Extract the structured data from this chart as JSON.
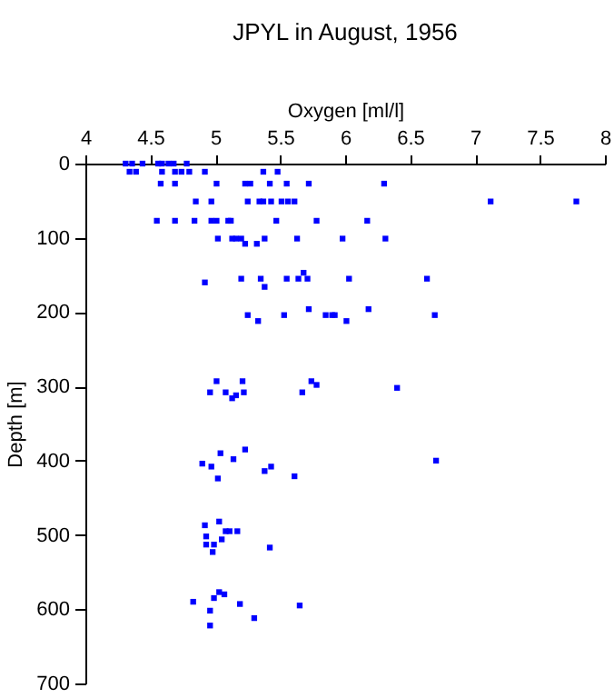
{
  "chart_data": {
    "type": "scatter",
    "title": "JPYL in August, 1956",
    "xlabel": "Oxygen [ml/l]",
    "ylabel": "Depth [m]",
    "xlim": [
      4,
      8
    ],
    "xticks": [
      4,
      4.5,
      5,
      5.5,
      6,
      6.5,
      7,
      7.5,
      8
    ],
    "ylim": [
      700,
      0
    ],
    "yticks": [
      0,
      100,
      200,
      300,
      400,
      500,
      600,
      700
    ],
    "grid": false,
    "marker": "square",
    "series": [
      {
        "color": "#0000ff",
        "x": [
          4.31,
          4.36,
          4.44,
          4.56,
          4.59,
          4.64,
          4.68,
          4.78,
          4.34,
          4.39,
          4.59,
          4.69,
          4.74,
          4.8,
          4.92,
          5.37,
          5.48,
          4.58,
          4.69,
          5.01,
          5.23,
          5.27,
          5.42,
          5.55,
          5.72,
          6.3,
          4.85,
          4.97,
          5.25,
          5.34,
          5.37,
          5.43,
          5.51,
          5.56,
          5.61,
          7.12,
          7.78,
          4.55,
          4.69,
          4.84,
          4.97,
          5.01,
          5.1,
          5.12,
          5.47,
          5.78,
          6.17,
          5.02,
          5.13,
          5.16,
          5.2,
          5.38,
          5.63,
          5.98,
          6.31,
          5.23,
          5.32,
          5.68,
          4.92,
          5.2,
          5.35,
          5.55,
          5.64,
          5.71,
          6.03,
          6.63,
          5.38,
          5.72,
          6.18,
          5.25,
          5.53,
          5.85,
          5.9,
          5.92,
          6.69,
          5.33,
          6.01,
          5.01,
          5.21,
          5.74,
          5.78,
          6.4,
          4.96,
          5.08,
          5.22,
          5.67,
          5.16,
          5.13,
          5.23,
          5.04,
          5.14,
          6.7,
          4.9,
          4.97,
          5.43,
          5.38,
          5.61,
          5.02,
          5.03,
          4.92,
          5.08,
          5.11,
          5.17,
          4.93,
          5.05,
          4.93,
          4.99,
          5.42,
          4.98,
          5.03,
          5.07,
          4.99,
          4.83,
          5.19,
          5.65,
          4.96,
          5.3,
          4.96
        ],
        "values": [
          0,
          0,
          0,
          0,
          0,
          0,
          0,
          0,
          11,
          11,
          11,
          11,
          11,
          11,
          11,
          11,
          11,
          27,
          27,
          27,
          27,
          27,
          27,
          27,
          27,
          27,
          51,
          51,
          51,
          51,
          51,
          51,
          51,
          51,
          51,
          51,
          51,
          77,
          77,
          77,
          77,
          77,
          77,
          77,
          77,
          77,
          77,
          101,
          101,
          101,
          101,
          101,
          101,
          101,
          101,
          108,
          108,
          147,
          160,
          155,
          155,
          155,
          155,
          155,
          155,
          155,
          166,
          196,
          196,
          204,
          204,
          204,
          204,
          204,
          204,
          212,
          212,
          293,
          293,
          293,
          298,
          302,
          308,
          308,
          308,
          308,
          312,
          316,
          385,
          390,
          398,
          400,
          404,
          408,
          408,
          414,
          421,
          424,
          482,
          487,
          495,
          495,
          495,
          502,
          506,
          513,
          513,
          517,
          523,
          577,
          580,
          585,
          590,
          593,
          595,
          602,
          612,
          622
        ]
      }
    ]
  }
}
